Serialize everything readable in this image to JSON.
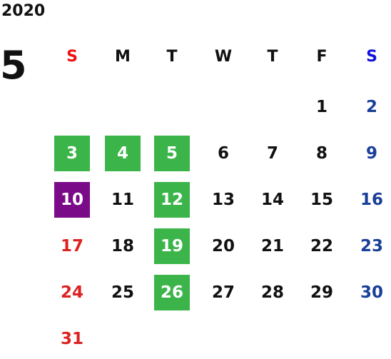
{
  "calendar": {
    "year": "2020",
    "month": "5",
    "weekdays": [
      "S",
      "M",
      "T",
      "W",
      "T",
      "F",
      "S"
    ],
    "weeks": [
      [
        "",
        "",
        "",
        "",
        "",
        "1",
        "2"
      ],
      [
        "3",
        "4",
        "5",
        "6",
        "7",
        "8",
        "9"
      ],
      [
        "10",
        "11",
        "12",
        "13",
        "14",
        "15",
        "16"
      ],
      [
        "17",
        "18",
        "19",
        "20",
        "21",
        "22",
        "23"
      ],
      [
        "24",
        "25",
        "26",
        "27",
        "28",
        "29",
        "30"
      ],
      [
        "31",
        "",
        "",
        "",
        "",
        "",
        ""
      ]
    ],
    "highlighted_holidays": [
      "3",
      "4",
      "5",
      "12",
      "19",
      "26"
    ],
    "highlighted_selected": [
      "10"
    ]
  },
  "colors": {
    "sunday_header": "#ee1111",
    "saturday_header": "#1111dd",
    "sunday": "#dd2222",
    "saturday": "#1a3f99",
    "weekday": "#111111",
    "holiday_bg": "#3bb54a",
    "selected_bg": "#7a0a88",
    "highlight_text": "#ffffff"
  }
}
